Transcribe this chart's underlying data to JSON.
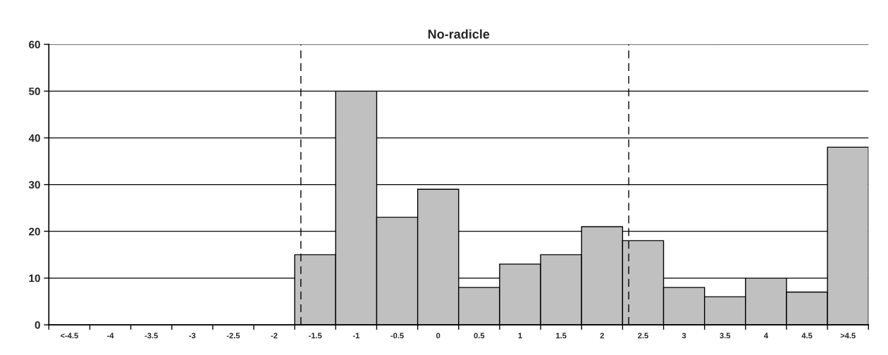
{
  "chart_data": {
    "type": "bar",
    "title": "No-radicle",
    "categories": [
      "<-4.5",
      "-4",
      "-3.5",
      "-3",
      "-2.5",
      "-2",
      "-1.5",
      "-1",
      "-0.5",
      "0",
      "0.5",
      "1",
      "1.5",
      "2",
      "2.5",
      "3",
      "3.5",
      "4",
      "4.5",
      ">4.5"
    ],
    "values": [
      0,
      0,
      0,
      0,
      0,
      0,
      15,
      50,
      23,
      29,
      8,
      13,
      15,
      21,
      18,
      8,
      6,
      10,
      7,
      38
    ],
    "color": "#c0c0c0",
    "ylim": [
      0,
      60
    ],
    "yticks": [
      0,
      10,
      20,
      30,
      40,
      50,
      60
    ],
    "grid": "y",
    "ref_lines": [
      {
        "axis": "x",
        "value": "-1.5",
        "color": "#000000",
        "line_style": "dashed"
      },
      {
        "axis": "x",
        "value": "2.5",
        "color": "#000000",
        "line_style": "dashed"
      }
    ]
  }
}
